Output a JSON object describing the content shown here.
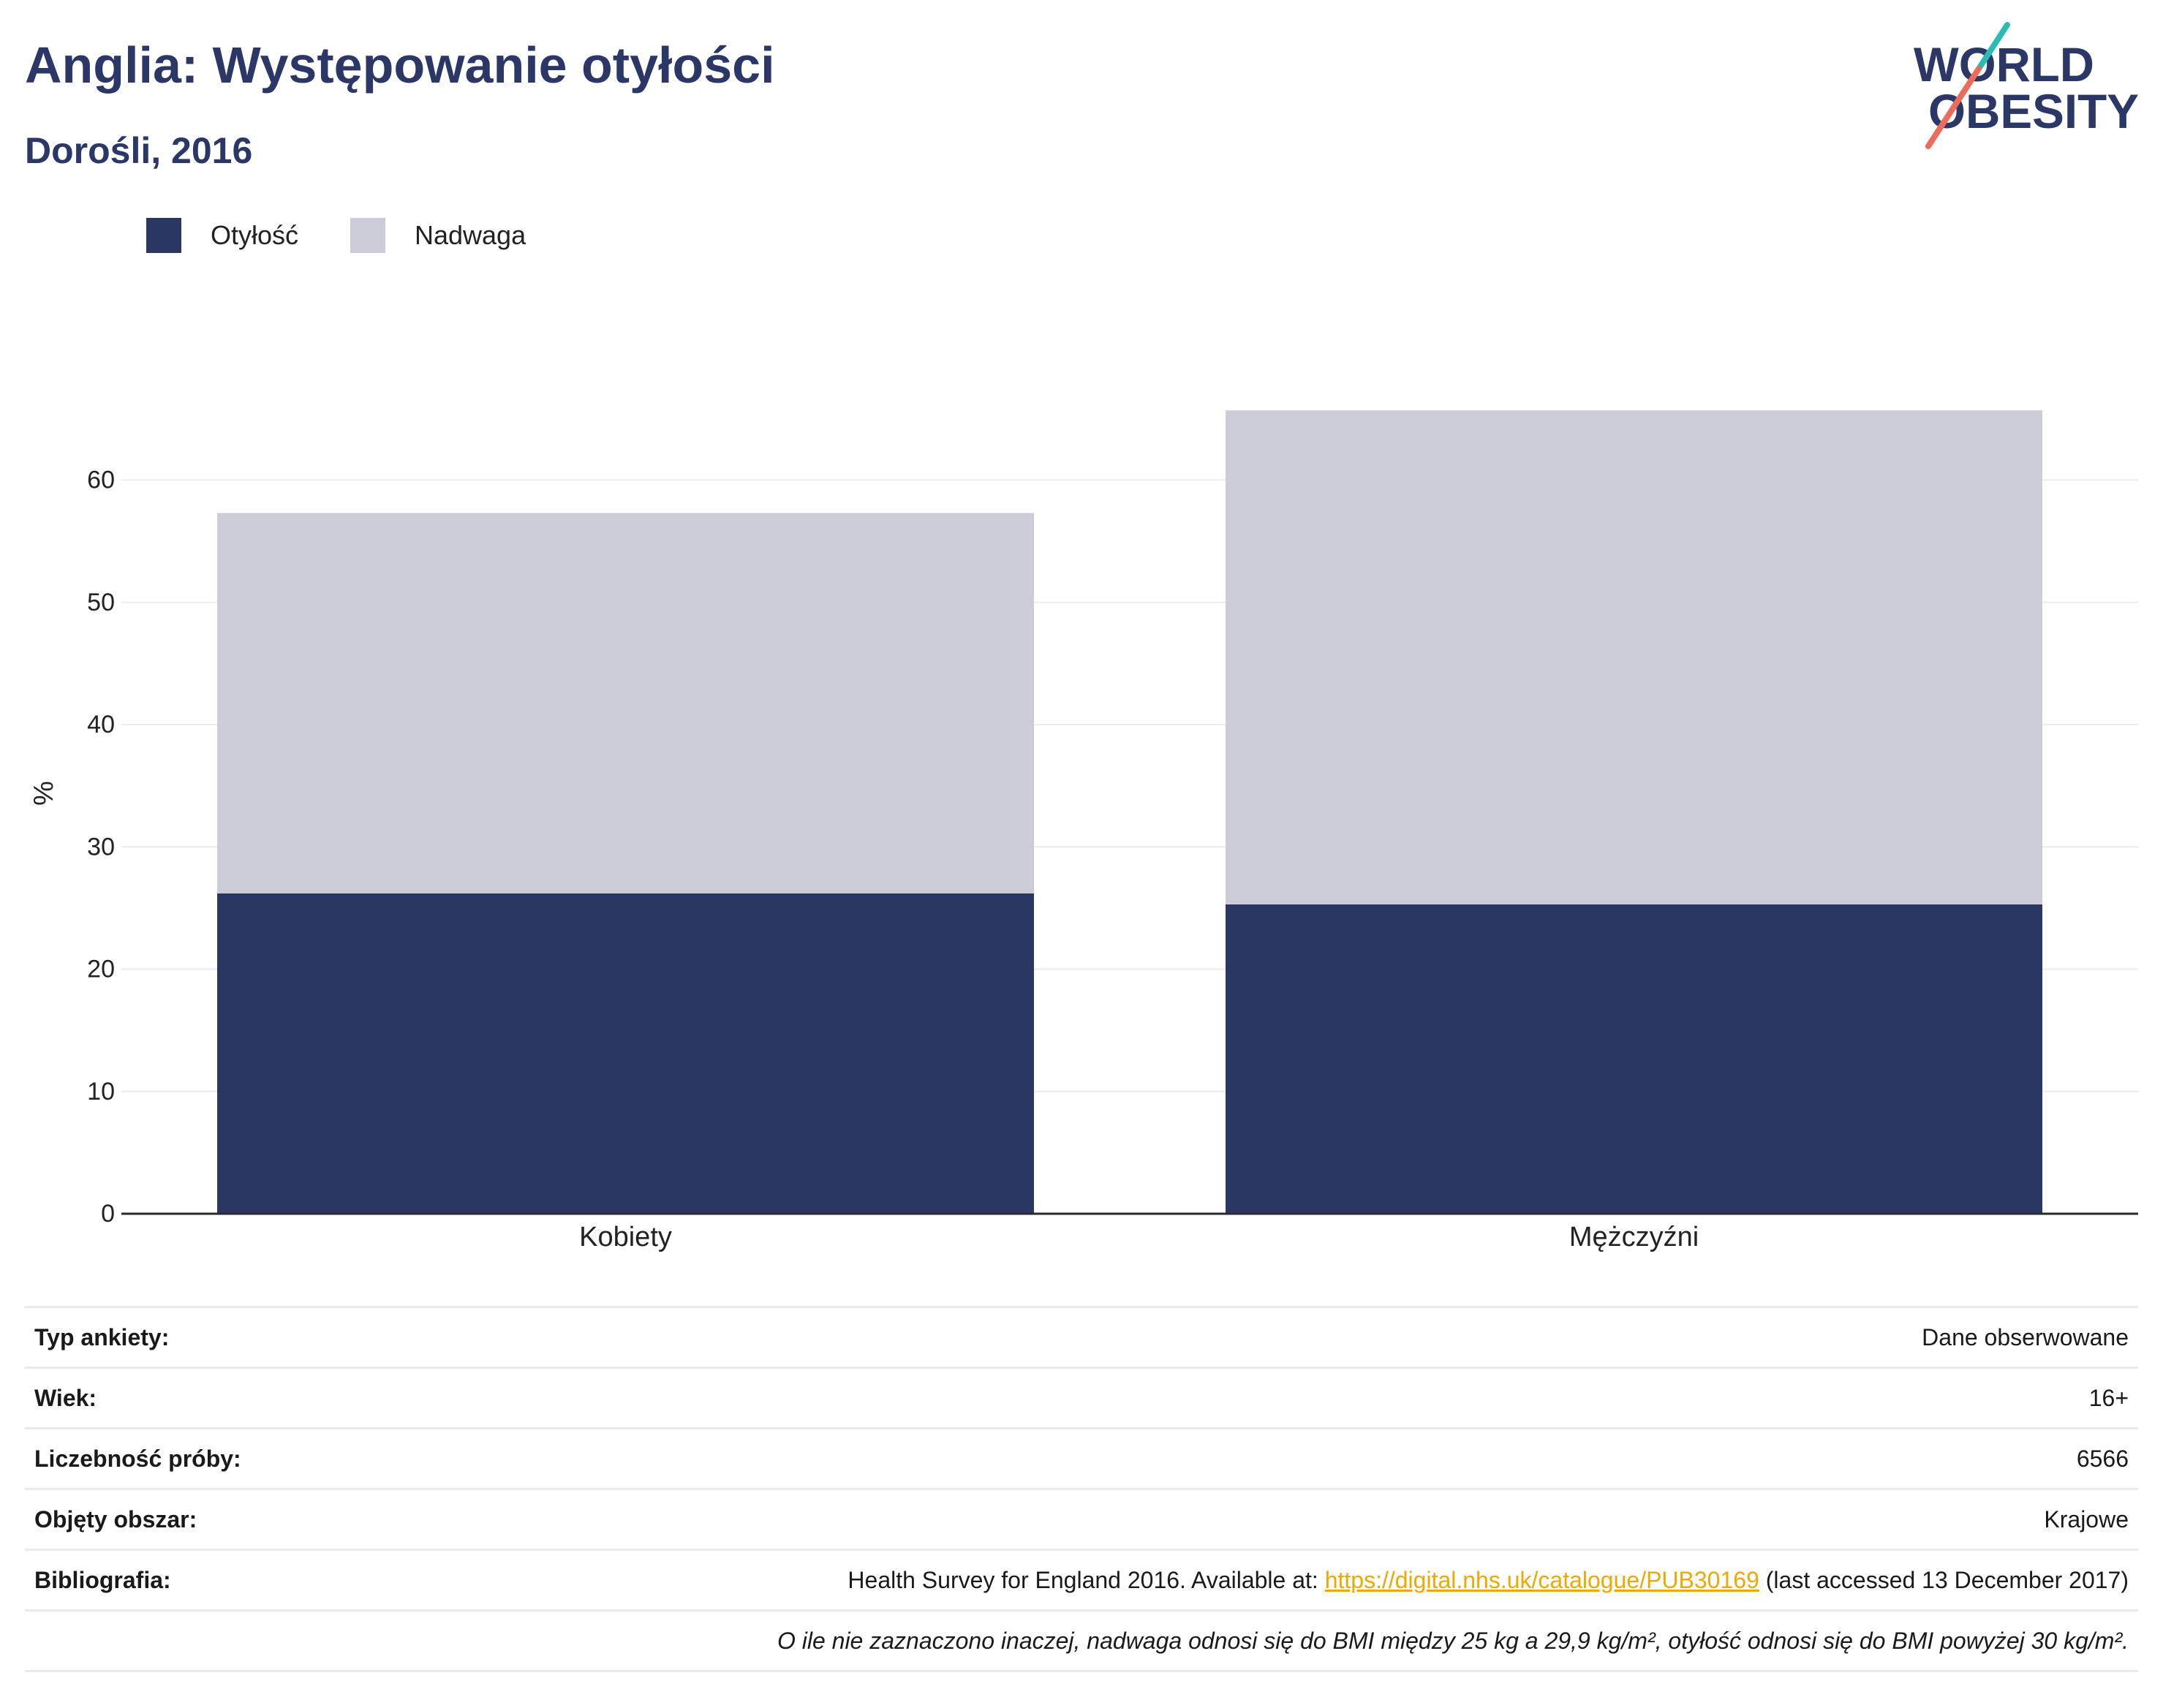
{
  "chart_data": {
    "type": "bar",
    "stacked": true,
    "title": "Anglia: Występowanie otyłości",
    "subtitle": "Dorośli, 2016",
    "xlabel": "",
    "ylabel": "%",
    "categories": [
      "Kobiety",
      "Mężczyźni"
    ],
    "series": [
      {
        "name": "Otyłość",
        "values": [
          26.2,
          25.3
        ],
        "color": "#2b3763"
      },
      {
        "name": "Nadwaga",
        "values": [
          31.1,
          40.4
        ],
        "color": "#cbccd8"
      }
    ],
    "ylim": [
      0,
      69
    ],
    "yticks": [
      0,
      10,
      20,
      30,
      40,
      50,
      60
    ],
    "grid": true,
    "legend_position": "top-left"
  },
  "logo": {
    "line1": "WORLD",
    "line2": "OBESITY",
    "colors": {
      "text": "#2b3767",
      "slash_top": "#2bbbb2",
      "slash_bottom": "#ec6b5b"
    }
  },
  "info": {
    "rows": [
      {
        "label": "Typ ankiety:",
        "value": "Dane obserwowane"
      },
      {
        "label": "Wiek:",
        "value": "16+"
      },
      {
        "label": "Liczebność próby:",
        "value": "6566"
      },
      {
        "label": "Objęty obszar:",
        "value": "Krajowe"
      }
    ],
    "bibliography": {
      "label": "Bibliografia:",
      "prefix": "Health Survey for England 2016. Available at: ",
      "link": "https://digital.nhs.uk/catalogue/PUB30169",
      "suffix": " (last accessed 13 December 2017)"
    },
    "note": "O ile nie zaznaczono inaczej, nadwaga odnosi się do BMI między 25 kg a 29,9 kg/m², otyłość odnosi się do BMI powyżej 30 kg/m².",
    "link_color": "#f0a800"
  }
}
